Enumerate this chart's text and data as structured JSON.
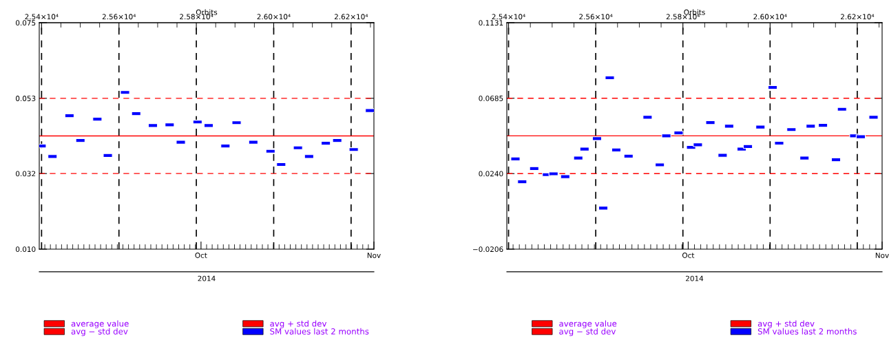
{
  "chart_data": [
    {
      "type": "scatter",
      "x2label": "Orbits",
      "xlabel": "2014",
      "legend": "bottom",
      "grid": false,
      "marker": "square",
      "xlim": [
        "2014-09-02",
        "2014-11-01"
      ],
      "xticks": [
        {
          "value": "2014-09-03",
          "label": null
        },
        {
          "value": "2014-09-04",
          "label": null
        },
        {
          "value": "2014-09-05",
          "label": null
        },
        {
          "value": "2014-09-06",
          "label": null
        },
        {
          "value": "2014-09-07",
          "label": null
        },
        {
          "value": "2014-09-08",
          "label": null
        },
        {
          "value": "2014-09-09",
          "label": null
        },
        {
          "value": "2014-09-10",
          "label": null
        },
        {
          "value": "2014-09-11",
          "label": null
        },
        {
          "value": "2014-09-12",
          "label": null
        },
        {
          "value": "2014-09-13",
          "label": null
        },
        {
          "value": "2014-09-14",
          "label": null
        },
        {
          "value": "2014-09-15",
          "label": null
        },
        {
          "value": "2014-09-16",
          "label": null
        },
        {
          "value": "2014-09-17",
          "label": null
        },
        {
          "value": "2014-09-18",
          "label": null
        },
        {
          "value": "2014-09-19",
          "label": null
        },
        {
          "value": "2014-09-20",
          "label": null
        },
        {
          "value": "2014-09-21",
          "label": null
        },
        {
          "value": "2014-09-22",
          "label": null
        },
        {
          "value": "2014-09-23",
          "label": null
        },
        {
          "value": "2014-09-24",
          "label": null
        },
        {
          "value": "2014-09-25",
          "label": null
        },
        {
          "value": "2014-09-26",
          "label": null
        },
        {
          "value": "2014-09-27",
          "label": null
        },
        {
          "value": "2014-09-28",
          "label": null
        },
        {
          "value": "2014-09-29",
          "label": null
        },
        {
          "value": "2014-09-30",
          "label": null
        },
        {
          "value": "2014-10-01",
          "label": "Oct"
        },
        {
          "value": "2014-10-02",
          "label": null
        },
        {
          "value": "2014-10-03",
          "label": null
        },
        {
          "value": "2014-10-04",
          "label": null
        },
        {
          "value": "2014-10-05",
          "label": null
        },
        {
          "value": "2014-10-06",
          "label": null
        },
        {
          "value": "2014-10-07",
          "label": null
        },
        {
          "value": "2014-10-08",
          "label": null
        },
        {
          "value": "2014-10-09",
          "label": null
        },
        {
          "value": "2014-10-10",
          "label": null
        },
        {
          "value": "2014-10-11",
          "label": null
        },
        {
          "value": "2014-10-12",
          "label": null
        },
        {
          "value": "2014-10-13",
          "label": null
        },
        {
          "value": "2014-10-14",
          "label": null
        },
        {
          "value": "2014-10-15",
          "label": null
        },
        {
          "value": "2014-10-16",
          "label": null
        },
        {
          "value": "2014-10-17",
          "label": null
        },
        {
          "value": "2014-10-18",
          "label": null
        },
        {
          "value": "2014-10-19",
          "label": null
        },
        {
          "value": "2014-10-20",
          "label": null
        },
        {
          "value": "2014-10-21",
          "label": null
        },
        {
          "value": "2014-10-22",
          "label": null
        },
        {
          "value": "2014-10-23",
          "label": null
        },
        {
          "value": "2014-10-24",
          "label": null
        },
        {
          "value": "2014-10-25",
          "label": null
        },
        {
          "value": "2014-10-26",
          "label": null
        },
        {
          "value": "2014-10-27",
          "label": null
        },
        {
          "value": "2014-10-28",
          "label": null
        },
        {
          "value": "2014-10-29",
          "label": null
        },
        {
          "value": "2014-10-30",
          "label": null
        },
        {
          "value": "2014-10-31",
          "label": null
        },
        {
          "value": "2014-11-01",
          "label": "Nov"
        }
      ],
      "x2lim": [
        25394,
        26259
      ],
      "x2ticks": [
        {
          "value": 25400,
          "label": "2.54×10⁴"
        },
        {
          "value": 25450,
          "label": null
        },
        {
          "value": 25500,
          "label": null
        },
        {
          "value": 25550,
          "label": null
        },
        {
          "value": 25600,
          "label": "2.56×10⁴"
        },
        {
          "value": 25650,
          "label": null
        },
        {
          "value": 25700,
          "label": null
        },
        {
          "value": 25750,
          "label": null
        },
        {
          "value": 25800,
          "label": "2.58×10⁴"
        },
        {
          "value": 25850,
          "label": null
        },
        {
          "value": 25900,
          "label": null
        },
        {
          "value": 25950,
          "label": null
        },
        {
          "value": 26000,
          "label": "2.60×10⁴"
        },
        {
          "value": 26050,
          "label": null
        },
        {
          "value": 26100,
          "label": null
        },
        {
          "value": 26150,
          "label": null
        },
        {
          "value": 26200,
          "label": "2.62×10⁴"
        },
        {
          "value": 26250,
          "label": null
        }
      ],
      "ylim": [
        0.01,
        0.075
      ],
      "yticks": [
        {
          "value": 0.01,
          "label": "0.010"
        },
        {
          "value": 0.0317,
          "label": "0.032"
        },
        {
          "value": 0.0533,
          "label": "0.053"
        },
        {
          "value": 0.075,
          "label": "0.075"
        }
      ],
      "ref_lines": [
        {
          "axis": "y",
          "value": 0.0425,
          "label": "average value",
          "color": "#ff0000",
          "line_style": "solid"
        },
        {
          "axis": "y",
          "value": 0.0317,
          "label": "avg − std dev",
          "color": "#ff0000",
          "line_style": "dashed"
        },
        {
          "axis": "y",
          "value": 0.0533,
          "label": "avg + std dev",
          "color": "#ff0000",
          "line_style": "dashed"
        },
        {
          "axis": "x2",
          "value": 25400,
          "color": "#000000",
          "line_style": "dashed"
        },
        {
          "axis": "x2",
          "value": 25600,
          "color": "#000000",
          "line_style": "dashed"
        },
        {
          "axis": "x2",
          "value": 25800,
          "color": "#000000",
          "line_style": "dashed"
        },
        {
          "axis": "x2",
          "value": 26000,
          "color": "#000000",
          "line_style": "dashed"
        },
        {
          "axis": "x2",
          "value": 26200,
          "color": "#000000",
          "line_style": "dashed"
        }
      ],
      "series": [
        {
          "name": "SM values last 2 months",
          "color": "#0000ff",
          "x": [
            "2014-09-02T10:00",
            "2014-09-04T09:00",
            "2014-09-07T10:00",
            "2014-09-09T09:00",
            "2014-09-12T10:00",
            "2014-09-14T07:00",
            "2014-09-17T09:00",
            "2014-09-19T09:00",
            "2014-09-22T09:00",
            "2014-09-25T09:00",
            "2014-09-27T09:00",
            "2014-09-30T09:00",
            "2014-10-02T09:00",
            "2014-10-05T09:00",
            "2014-10-07T09:00",
            "2014-10-10T09:00",
            "2014-10-13T11:00",
            "2014-10-15T09:00",
            "2014-10-18T09:00",
            "2014-10-20T09:00",
            "2014-10-23T09:00",
            "2014-10-25T10:00",
            "2014-10-28T09:00",
            "2014-10-31T07:00"
          ],
          "values": [
            0.0396,
            0.0366,
            0.0483,
            0.0412,
            0.0473,
            0.0369,
            0.055,
            0.0489,
            0.0455,
            0.0457,
            0.0407,
            0.0465,
            0.0455,
            0.0396,
            0.0463,
            0.0407,
            0.0381,
            0.0343,
            0.0391,
            0.0366,
            0.0404,
            0.0412,
            0.0386,
            0.0498
          ]
        }
      ]
    },
    {
      "type": "scatter",
      "x2label": "Orbits",
      "xlabel": "2014",
      "legend": "bottom",
      "grid": false,
      "marker": "square",
      "xlim": [
        "2014-09-02",
        "2014-11-01"
      ],
      "xticks": [
        {
          "value": "2014-09-03",
          "label": null
        },
        {
          "value": "2014-09-04",
          "label": null
        },
        {
          "value": "2014-09-05",
          "label": null
        },
        {
          "value": "2014-09-06",
          "label": null
        },
        {
          "value": "2014-09-07",
          "label": null
        },
        {
          "value": "2014-09-08",
          "label": null
        },
        {
          "value": "2014-09-09",
          "label": null
        },
        {
          "value": "2014-09-10",
          "label": null
        },
        {
          "value": "2014-09-11",
          "label": null
        },
        {
          "value": "2014-09-12",
          "label": null
        },
        {
          "value": "2014-09-13",
          "label": null
        },
        {
          "value": "2014-09-14",
          "label": null
        },
        {
          "value": "2014-09-15",
          "label": null
        },
        {
          "value": "2014-09-16",
          "label": null
        },
        {
          "value": "2014-09-17",
          "label": null
        },
        {
          "value": "2014-09-18",
          "label": null
        },
        {
          "value": "2014-09-19",
          "label": null
        },
        {
          "value": "2014-09-20",
          "label": null
        },
        {
          "value": "2014-09-21",
          "label": null
        },
        {
          "value": "2014-09-22",
          "label": null
        },
        {
          "value": "2014-09-23",
          "label": null
        },
        {
          "value": "2014-09-24",
          "label": null
        },
        {
          "value": "2014-09-25",
          "label": null
        },
        {
          "value": "2014-09-26",
          "label": null
        },
        {
          "value": "2014-09-27",
          "label": null
        },
        {
          "value": "2014-09-28",
          "label": null
        },
        {
          "value": "2014-09-29",
          "label": null
        },
        {
          "value": "2014-09-30",
          "label": null
        },
        {
          "value": "2014-10-01",
          "label": "Oct"
        },
        {
          "value": "2014-10-02",
          "label": null
        },
        {
          "value": "2014-10-03",
          "label": null
        },
        {
          "value": "2014-10-04",
          "label": null
        },
        {
          "value": "2014-10-05",
          "label": null
        },
        {
          "value": "2014-10-06",
          "label": null
        },
        {
          "value": "2014-10-07",
          "label": null
        },
        {
          "value": "2014-10-08",
          "label": null
        },
        {
          "value": "2014-10-09",
          "label": null
        },
        {
          "value": "2014-10-10",
          "label": null
        },
        {
          "value": "2014-10-11",
          "label": null
        },
        {
          "value": "2014-10-12",
          "label": null
        },
        {
          "value": "2014-10-13",
          "label": null
        },
        {
          "value": "2014-10-14",
          "label": null
        },
        {
          "value": "2014-10-15",
          "label": null
        },
        {
          "value": "2014-10-16",
          "label": null
        },
        {
          "value": "2014-10-17",
          "label": null
        },
        {
          "value": "2014-10-18",
          "label": null
        },
        {
          "value": "2014-10-19",
          "label": null
        },
        {
          "value": "2014-10-20",
          "label": null
        },
        {
          "value": "2014-10-21",
          "label": null
        },
        {
          "value": "2014-10-22",
          "label": null
        },
        {
          "value": "2014-10-23",
          "label": null
        },
        {
          "value": "2014-10-24",
          "label": null
        },
        {
          "value": "2014-10-25",
          "label": null
        },
        {
          "value": "2014-10-26",
          "label": null
        },
        {
          "value": "2014-10-27",
          "label": null
        },
        {
          "value": "2014-10-28",
          "label": null
        },
        {
          "value": "2014-10-29",
          "label": null
        },
        {
          "value": "2014-10-30",
          "label": null
        },
        {
          "value": "2014-10-31",
          "label": null
        },
        {
          "value": "2014-11-01",
          "label": "Nov"
        }
      ],
      "x2lim": [
        25396,
        26257
      ],
      "x2ticks": [
        {
          "value": 25400,
          "label": "2.54×10⁴"
        },
        {
          "value": 25450,
          "label": null
        },
        {
          "value": 25500,
          "label": null
        },
        {
          "value": 25550,
          "label": null
        },
        {
          "value": 25600,
          "label": "2.56×10⁴"
        },
        {
          "value": 25650,
          "label": null
        },
        {
          "value": 25700,
          "label": null
        },
        {
          "value": 25750,
          "label": null
        },
        {
          "value": 25800,
          "label": "2.58×10⁴"
        },
        {
          "value": 25850,
          "label": null
        },
        {
          "value": 25900,
          "label": null
        },
        {
          "value": 25950,
          "label": null
        },
        {
          "value": 26000,
          "label": "2.60×10⁴"
        },
        {
          "value": 26050,
          "label": null
        },
        {
          "value": 26100,
          "label": null
        },
        {
          "value": 26150,
          "label": null
        },
        {
          "value": 26200,
          "label": "2.62×10⁴"
        },
        {
          "value": 26250,
          "label": null
        }
      ],
      "ylim": [
        -0.0206,
        0.1131
      ],
      "yticks": [
        {
          "value": -0.0206,
          "label": "−0.0206"
        },
        {
          "value": 0.024,
          "label": "0.0240"
        },
        {
          "value": 0.0685,
          "label": "0.0685"
        },
        {
          "value": 0.1131,
          "label": "0.1131"
        }
      ],
      "ref_lines": [
        {
          "axis": "y",
          "value": 0.0463,
          "label": "average value",
          "color": "#ff0000",
          "line_style": "solid"
        },
        {
          "axis": "y",
          "value": 0.024,
          "label": "avg − std dev",
          "color": "#ff0000",
          "line_style": "dashed"
        },
        {
          "axis": "y",
          "value": 0.0685,
          "label": "avg + std dev",
          "color": "#ff0000",
          "line_style": "dashed"
        },
        {
          "axis": "x2",
          "value": 25400,
          "color": "#000000",
          "line_style": "dashed"
        },
        {
          "axis": "x2",
          "value": 25600,
          "color": "#000000",
          "line_style": "dashed"
        },
        {
          "axis": "x2",
          "value": 25800,
          "color": "#000000",
          "line_style": "dashed"
        },
        {
          "axis": "x2",
          "value": 26000,
          "color": "#000000",
          "line_style": "dashed"
        },
        {
          "axis": "x2",
          "value": 26200,
          "color": "#000000",
          "line_style": "dashed"
        }
      ],
      "series": [
        {
          "name": "SM values last 2 months",
          "color": "#0000ff",
          "x": [
            "2014-09-03T09:00",
            "2014-09-04T11:00",
            "2014-09-06T09:00",
            "2014-09-08T10:00",
            "2014-09-09T11:00",
            "2014-09-11T08:00",
            "2014-09-13T10:00",
            "2014-09-14T10:00",
            "2014-09-16T10:00",
            "2014-09-17T10:00",
            "2014-09-18T11:00",
            "2014-09-19T12:00",
            "2014-09-21T11:00",
            "2014-09-24T12:00",
            "2014-09-26T11:00",
            "2014-09-27T12:00",
            "2014-09-29T11:00",
            "2014-10-01T11:00",
            "2014-10-02T13:00",
            "2014-10-04T13:00",
            "2014-10-06T12:00",
            "2014-10-07T13:00",
            "2014-10-09T13:00",
            "2014-10-10T13:00",
            "2014-10-12T13:00",
            "2014-10-14T12:00",
            "2014-10-15T13:00",
            "2014-10-17T12:00",
            "2014-10-19T14:00",
            "2014-10-20T14:00",
            "2014-10-22T13:00",
            "2014-10-24T15:00",
            "2014-10-25T14:00",
            "2014-10-27T13:00",
            "2014-10-28T14:00",
            "2014-10-30T15:00"
          ],
          "values": [
            0.0327,
            0.0192,
            0.027,
            0.0234,
            0.0239,
            0.0222,
            0.0332,
            0.0385,
            0.0447,
            0.0036,
            0.0806,
            0.038,
            0.0343,
            0.0573,
            0.0292,
            0.0463,
            0.048,
            0.0395,
            0.041,
            0.0541,
            0.0348,
            0.052,
            0.0385,
            0.04,
            0.0515,
            0.0749,
            0.042,
            0.05,
            0.0332,
            0.052,
            0.0525,
            0.0322,
            0.062,
            0.0463,
            0.0458,
            0.0573
          ]
        }
      ]
    }
  ]
}
